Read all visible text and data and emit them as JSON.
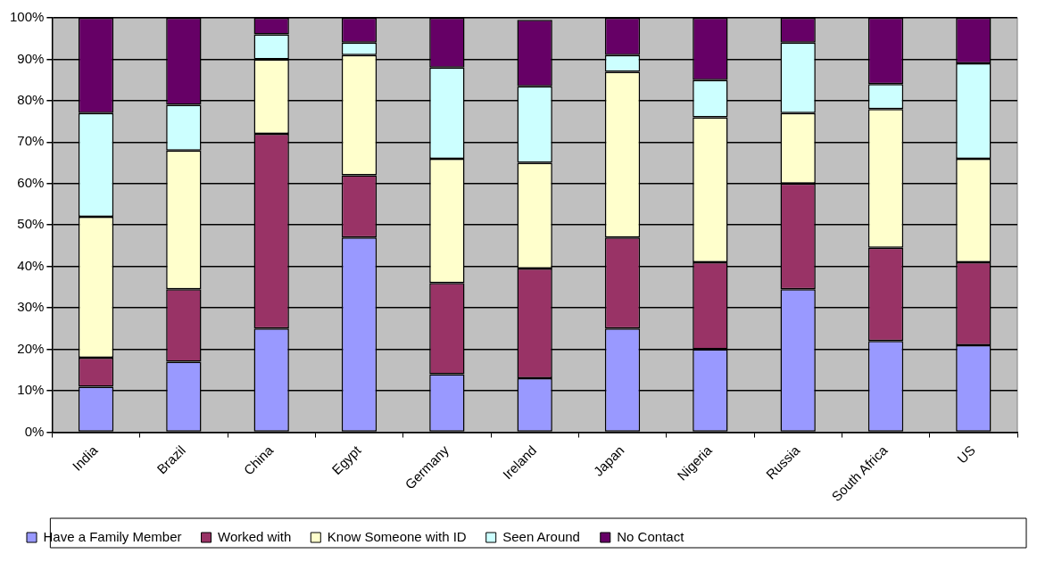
{
  "chart_data": {
    "type": "bar",
    "stacked": true,
    "categories": [
      "India",
      "Brazil",
      "China",
      "Egypt",
      "Germany",
      "Ireland",
      "Japan",
      "Nigeria",
      "Russia",
      "South Africa",
      "US"
    ],
    "series": [
      {
        "name": "Have a Family Member",
        "color": "#9999ff",
        "values": [
          11,
          17,
          25,
          47,
          14,
          13,
          25,
          20,
          34.5,
          22,
          21
        ]
      },
      {
        "name": "Worked with",
        "color": "#993366",
        "values": [
          7,
          17.5,
          47,
          15,
          22,
          26.5,
          22,
          21,
          25.5,
          22.5,
          20
        ]
      },
      {
        "name": "Know Someone with ID",
        "color": "#ffffcc",
        "values": [
          34,
          33.5,
          18,
          29,
          30,
          25.5,
          40,
          35,
          17,
          33.5,
          25
        ]
      },
      {
        "name": "Seen Around",
        "color": "#ccffff",
        "values": [
          25,
          11,
          6,
          3,
          22,
          18.5,
          4,
          9,
          17,
          6,
          23
        ]
      },
      {
        "name": "No Contact",
        "color": "#660066",
        "values": [
          23,
          21,
          4,
          6,
          12,
          16,
          9,
          15,
          6,
          16,
          11
        ]
      }
    ],
    "ylim": [
      0,
      100
    ],
    "yticks": [
      {
        "value": 0,
        "label": "0%"
      },
      {
        "value": 10,
        "label": "10%"
      },
      {
        "value": 20,
        "label": "20%"
      },
      {
        "value": 30,
        "label": "30%"
      },
      {
        "value": 40,
        "label": "40%"
      },
      {
        "value": 50,
        "label": "50%"
      },
      {
        "value": 60,
        "label": "60%"
      },
      {
        "value": 70,
        "label": "70%"
      },
      {
        "value": 80,
        "label": "80%"
      },
      {
        "value": 90,
        "label": "90%"
      },
      {
        "value": 100,
        "label": "100%"
      }
    ],
    "grid": "y",
    "legend": "bottom"
  }
}
